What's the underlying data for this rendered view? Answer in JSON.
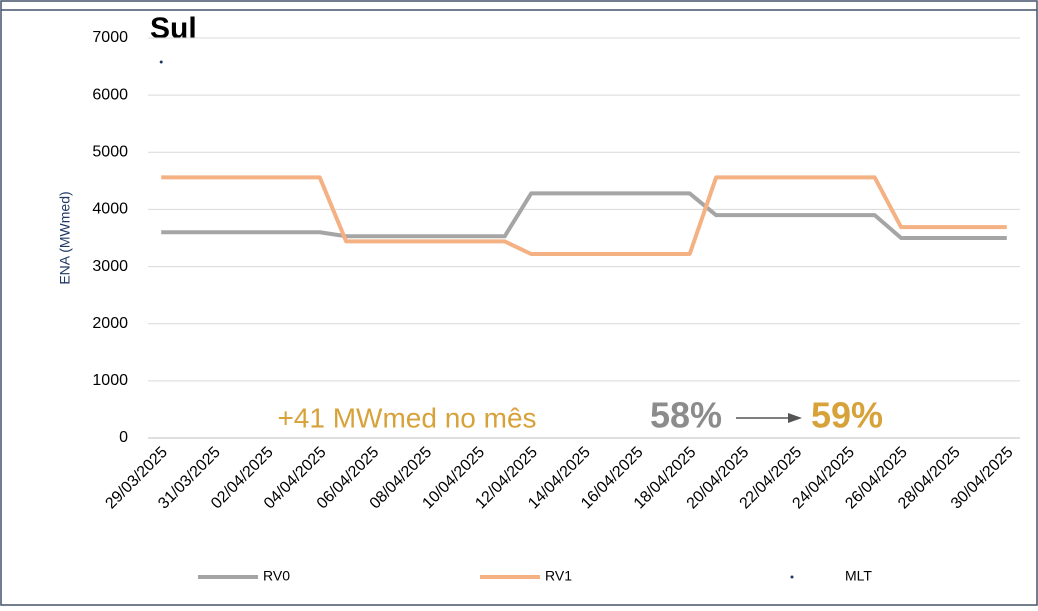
{
  "chart_data": {
    "type": "line",
    "title": "Sul",
    "ylabel": "ENA (MWmed)",
    "categories": [
      "29/03/2025",
      null,
      "31/03/2025",
      null,
      "02/04/2025",
      null,
      "04/04/2025",
      null,
      "06/04/2025",
      null,
      "08/04/2025",
      null,
      "10/04/2025",
      null,
      "12/04/2025",
      null,
      "14/04/2025",
      null,
      "16/04/2025",
      null,
      "18/04/2025",
      null,
      "20/04/2025",
      null,
      "22/04/2025",
      null,
      "24/04/2025",
      null,
      "26/04/2025",
      null,
      "28/04/2025",
      null,
      "30/04/2025"
    ],
    "series": [
      {
        "name": "RV0",
        "color": "#a5a5a5",
        "values": [
          3600,
          3600,
          3600,
          3600,
          3600,
          3600,
          3600,
          3530,
          3530,
          3530,
          3530,
          3530,
          3530,
          3530,
          4280,
          4280,
          4280,
          4280,
          4280,
          4280,
          4280,
          3900,
          3900,
          3900,
          3900,
          3900,
          3900,
          3900,
          3500,
          3500,
          3500,
          3500,
          3500
        ]
      },
      {
        "name": "RV1",
        "color": "#f4b183",
        "values": [
          4560,
          4560,
          4560,
          4560,
          4560,
          4560,
          4560,
          3440,
          3440,
          3440,
          3440,
          3440,
          3440,
          3440,
          3220,
          3220,
          3220,
          3220,
          3220,
          3220,
          3220,
          4560,
          4560,
          4560,
          4560,
          4560,
          4560,
          4560,
          3690,
          3690,
          3690,
          3690,
          3690
        ]
      },
      {
        "name": "MLT",
        "color": "#1f3864",
        "values": [
          6580,
          null,
          null,
          null,
          null,
          null,
          null,
          null,
          null,
          null,
          null,
          null,
          null,
          null,
          null,
          null,
          null,
          null,
          null,
          null,
          null,
          null,
          null,
          null,
          null,
          null,
          null,
          null,
          null,
          null,
          null,
          null,
          null
        ]
      }
    ],
    "ylim": [
      0,
      7000
    ],
    "yticks": [
      0,
      1000,
      2000,
      3000,
      4000,
      5000,
      6000,
      7000
    ],
    "grid": true,
    "annotations": [
      "+41 MWmed no mês",
      "58%",
      "59%"
    ]
  }
}
